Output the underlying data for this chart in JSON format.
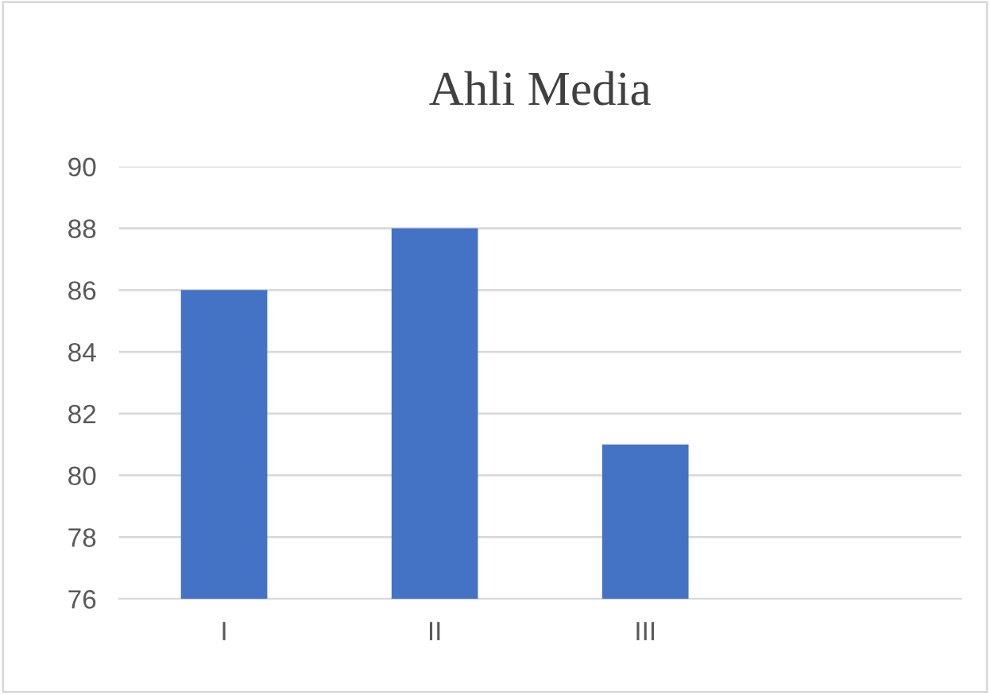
{
  "chart_data": {
    "type": "bar",
    "title": "Ahli Media",
    "categories": [
      "I",
      "II",
      "III",
      null
    ],
    "values": [
      86,
      88,
      81,
      null
    ],
    "color": "#4472c4",
    "ylim": [
      76,
      90
    ],
    "yticks": [
      76,
      78,
      80,
      82,
      84,
      86,
      88,
      90
    ],
    "grid": "y"
  }
}
